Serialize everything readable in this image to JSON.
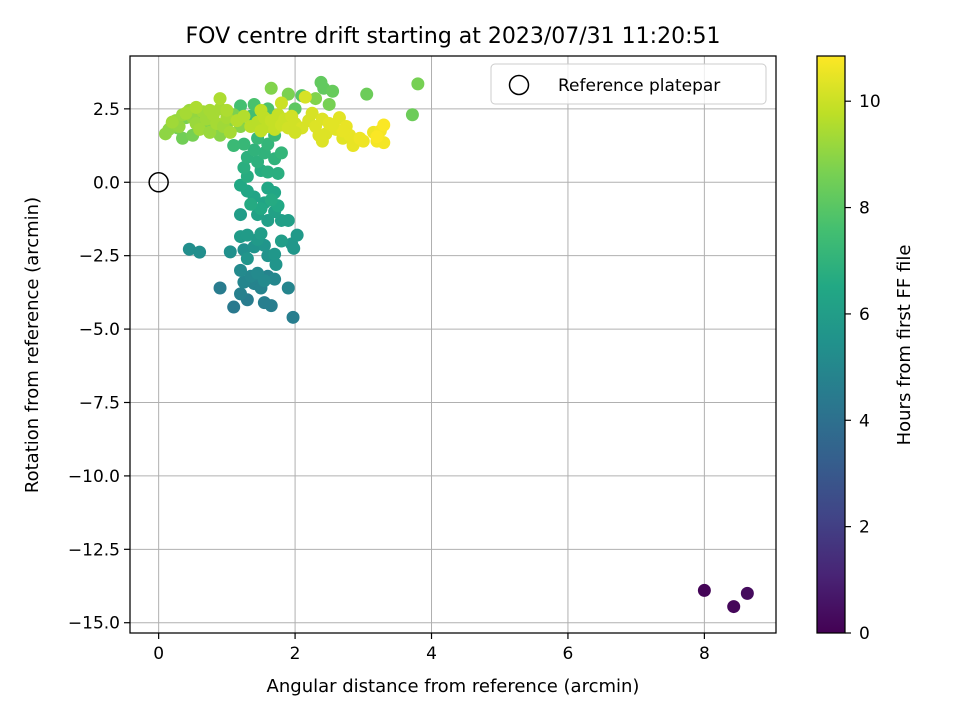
{
  "chart_data": {
    "type": "scatter",
    "title": "FOV centre drift starting at 2023/07/31 11:20:51",
    "xlabel": "Angular distance from reference (arcmin)",
    "ylabel": "Rotation from reference (arcmin)",
    "xlim": [
      -0.42,
      9.05
    ],
    "ylim": [
      -15.35,
      4.3
    ],
    "x_ticks": [
      0,
      2,
      4,
      6,
      8
    ],
    "y_ticks": [
      2.5,
      0.0,
      -2.5,
      -5.0,
      -7.5,
      -10.0,
      -12.5,
      -15.0
    ],
    "x_tick_labels": [
      "0",
      "2",
      "4",
      "6",
      "8"
    ],
    "y_tick_labels": [
      "2.5",
      "0.0",
      "−2.5",
      "−5.0",
      "−7.5",
      "−10.0",
      "−12.5",
      "−15.0"
    ],
    "grid": true,
    "legend": {
      "placement": "upper-right",
      "entries": [
        "Reference platepar"
      ]
    },
    "reference_point": {
      "x": 0,
      "y": 0,
      "label": "Reference platepar"
    },
    "colorbar": {
      "label": "Hours from first FF file",
      "range": [
        0,
        10.85
      ],
      "ticks": [
        0,
        2,
        4,
        6,
        8,
        10
      ],
      "tick_labels": [
        "0",
        "2",
        "4",
        "6",
        "8",
        "10"
      ],
      "colormap": "viridis"
    },
    "points": [
      [
        8.0,
        -13.9,
        0.1
      ],
      [
        8.43,
        -14.45,
        0.2
      ],
      [
        8.63,
        -14.0,
        0.3
      ],
      [
        1.1,
        -4.25,
        4.4
      ],
      [
        0.9,
        -3.6,
        4.5
      ],
      [
        1.3,
        -4.0,
        4.5
      ],
      [
        1.65,
        -4.2,
        4.6
      ],
      [
        1.55,
        -4.1,
        4.6
      ],
      [
        1.97,
        -4.6,
        4.6
      ],
      [
        1.2,
        -3.8,
        4.7
      ],
      [
        1.4,
        -3.45,
        4.8
      ],
      [
        1.5,
        -3.6,
        4.8
      ],
      [
        1.6,
        -3.2,
        4.8
      ],
      [
        1.9,
        -3.6,
        4.9
      ],
      [
        1.25,
        -3.4,
        4.9
      ],
      [
        1.7,
        -3.3,
        5.0
      ],
      [
        1.35,
        -3.2,
        5.0
      ],
      [
        1.2,
        -3.0,
        5.1
      ],
      [
        1.45,
        -3.1,
        5.1
      ],
      [
        1.55,
        -3.35,
        5.1
      ],
      [
        0.45,
        -2.28,
        5.3
      ],
      [
        0.6,
        -2.38,
        5.3
      ],
      [
        1.05,
        -2.37,
        5.4
      ],
      [
        1.25,
        -2.3,
        5.4
      ],
      [
        1.4,
        -2.2,
        5.5
      ],
      [
        1.6,
        -2.5,
        5.5
      ],
      [
        1.72,
        -2.8,
        5.6
      ],
      [
        1.55,
        -2.15,
        5.6
      ],
      [
        1.3,
        -2.6,
        5.6
      ],
      [
        1.7,
        -2.45,
        5.7
      ],
      [
        1.95,
        -2.1,
        5.7
      ],
      [
        1.98,
        -2.25,
        5.7
      ],
      [
        2.03,
        -1.8,
        5.8
      ],
      [
        1.45,
        -1.95,
        5.8
      ],
      [
        1.2,
        -1.85,
        5.9
      ],
      [
        1.3,
        -1.8,
        5.9
      ],
      [
        1.5,
        -1.75,
        6.0
      ],
      [
        1.8,
        -2.0,
        6.0
      ],
      [
        1.2,
        -1.1,
        6.0
      ],
      [
        1.6,
        -1.3,
        6.1
      ],
      [
        1.8,
        -1.3,
        6.1
      ],
      [
        1.9,
        -1.3,
        6.1
      ],
      [
        1.45,
        -1.1,
        6.2
      ],
      [
        1.7,
        -1.0,
        6.2
      ],
      [
        1.55,
        -0.7,
        6.3
      ],
      [
        1.4,
        -0.5,
        6.3
      ],
      [
        1.3,
        -0.3,
        6.4
      ],
      [
        1.6,
        -0.2,
        6.4
      ],
      [
        1.7,
        -0.35,
        6.4
      ],
      [
        1.2,
        -0.1,
        6.5
      ],
      [
        1.5,
        -0.9,
        6.5
      ],
      [
        1.75,
        -0.8,
        6.5
      ],
      [
        1.35,
        -0.75,
        6.6
      ],
      [
        1.65,
        -0.6,
        6.6
      ],
      [
        1.3,
        0.2,
        6.7
      ],
      [
        1.5,
        0.4,
        6.7
      ],
      [
        1.25,
        0.5,
        6.8
      ],
      [
        1.75,
        0.3,
        6.8
      ],
      [
        1.6,
        0.35,
        6.8
      ],
      [
        1.45,
        0.7,
        6.9
      ],
      [
        1.3,
        0.85,
        6.9
      ],
      [
        1.7,
        0.8,
        7.0
      ],
      [
        1.55,
        1.0,
        7.0
      ],
      [
        1.4,
        1.1,
        7.0
      ],
      [
        1.8,
        1.0,
        7.1
      ],
      [
        1.6,
        1.3,
        7.1
      ],
      [
        1.25,
        1.3,
        7.2
      ],
      [
        1.45,
        1.5,
        7.2
      ],
      [
        1.7,
        1.6,
        7.3
      ],
      [
        1.1,
        1.25,
        7.3
      ],
      [
        1.55,
        2.0,
        7.4
      ],
      [
        1.35,
        2.25,
        7.5
      ],
      [
        1.2,
        2.6,
        7.6
      ],
      [
        1.4,
        2.65,
        7.7
      ],
      [
        1.6,
        2.5,
        7.8
      ],
      [
        1.75,
        2.3,
        7.9
      ],
      [
        2.1,
        2.95,
        8.0
      ],
      [
        2.0,
        2.5,
        8.1
      ],
      [
        2.38,
        3.4,
        8.2
      ],
      [
        2.42,
        3.2,
        8.2
      ],
      [
        2.55,
        3.1,
        8.3
      ],
      [
        3.05,
        3.0,
        8.4
      ],
      [
        3.72,
        2.3,
        8.4
      ],
      [
        3.8,
        3.35,
        8.6
      ],
      [
        2.5,
        2.65,
        8.6
      ],
      [
        1.9,
        3.0,
        8.7
      ],
      [
        1.65,
        3.2,
        8.8
      ],
      [
        2.3,
        2.85,
        8.8
      ],
      [
        0.2,
        2.0,
        8.6
      ],
      [
        0.28,
        1.85,
        8.6
      ],
      [
        0.35,
        1.5,
        8.5
      ],
      [
        0.5,
        1.6,
        8.6
      ],
      [
        0.4,
        2.2,
        8.7
      ],
      [
        0.6,
        2.3,
        8.8
      ],
      [
        0.7,
        2.0,
        8.8
      ],
      [
        0.8,
        1.75,
        8.9
      ],
      [
        0.9,
        1.6,
        8.9
      ],
      [
        1.0,
        2.0,
        8.9
      ],
      [
        1.1,
        2.3,
        8.7
      ],
      [
        1.2,
        1.9,
        8.9
      ],
      [
        0.1,
        1.65,
        9.0
      ],
      [
        0.15,
        1.8,
        9.0
      ],
      [
        0.25,
        2.1,
        9.1
      ],
      [
        0.3,
        1.9,
        9.1
      ],
      [
        0.35,
        2.3,
        9.2
      ],
      [
        0.45,
        2.45,
        9.2
      ],
      [
        0.5,
        2.2,
        9.1
      ],
      [
        0.55,
        2.0,
        9.2
      ],
      [
        0.6,
        1.8,
        9.3
      ],
      [
        0.65,
        2.4,
        9.3
      ],
      [
        0.7,
        2.15,
        9.3
      ],
      [
        0.75,
        1.7,
        9.2
      ],
      [
        0.8,
        2.3,
        9.4
      ],
      [
        0.85,
        2.0,
        9.4
      ],
      [
        0.9,
        2.5,
        9.4
      ],
      [
        0.95,
        1.9,
        9.3
      ],
      [
        1.0,
        2.2,
        9.4
      ],
      [
        1.05,
        1.7,
        9.4
      ],
      [
        0.9,
        2.85,
        9.5
      ],
      [
        0.4,
        2.35,
        9.4
      ],
      [
        0.55,
        2.55,
        9.5
      ],
      [
        0.2,
        2.05,
        9.3
      ],
      [
        1.15,
        2.1,
        9.6
      ],
      [
        1.25,
        2.25,
        9.6
      ],
      [
        1.35,
        1.9,
        9.7
      ],
      [
        1.45,
        2.05,
        9.7
      ],
      [
        1.5,
        1.75,
        9.8
      ],
      [
        1.55,
        2.2,
        9.8
      ],
      [
        1.6,
        1.9,
        9.8
      ],
      [
        1.65,
        2.1,
        9.9
      ],
      [
        1.7,
        1.8,
        9.9
      ],
      [
        1.75,
        2.3,
        9.9
      ],
      [
        1.8,
        1.95,
        10.0
      ],
      [
        1.85,
        2.15,
        10.0
      ],
      [
        1.8,
        2.7,
        10.0
      ],
      [
        1.9,
        1.85,
        10.1
      ],
      [
        1.95,
        2.25,
        10.1
      ],
      [
        2.0,
        2.0,
        10.1
      ],
      [
        2.1,
        1.85,
        10.2
      ],
      [
        2.2,
        2.1,
        10.2
      ],
      [
        2.15,
        2.9,
        10.2
      ],
      [
        2.25,
        2.35,
        10.2
      ],
      [
        2.3,
        1.9,
        10.3
      ],
      [
        2.4,
        2.15,
        10.3
      ],
      [
        2.45,
        1.65,
        10.3
      ],
      [
        2.4,
        1.4,
        10.3
      ],
      [
        2.5,
        2.0,
        10.4
      ],
      [
        2.6,
        1.8,
        10.4
      ],
      [
        2.7,
        1.5,
        10.4
      ],
      [
        2.65,
        2.2,
        10.4
      ],
      [
        2.75,
        1.9,
        10.5
      ],
      [
        2.8,
        1.6,
        10.5
      ],
      [
        2.85,
        1.25,
        10.5
      ],
      [
        2.7,
        1.75,
        10.5
      ],
      [
        2.95,
        1.5,
        10.6
      ],
      [
        3.0,
        1.4,
        10.6
      ],
      [
        3.15,
        1.7,
        10.6
      ],
      [
        3.2,
        1.4,
        10.7
      ],
      [
        3.25,
        1.75,
        10.7
      ],
      [
        3.3,
        1.35,
        10.7
      ],
      [
        3.3,
        1.95,
        10.8
      ],
      [
        3.2,
        1.55,
        10.8
      ],
      [
        2.55,
        1.95,
        10.4
      ],
      [
        1.5,
        2.45,
        9.8
      ],
      [
        1.0,
        2.45,
        9.5
      ],
      [
        2.0,
        1.7,
        10.1
      ],
      [
        2.35,
        1.6,
        10.3
      ],
      [
        0.75,
        2.45,
        9.4
      ]
    ]
  }
}
